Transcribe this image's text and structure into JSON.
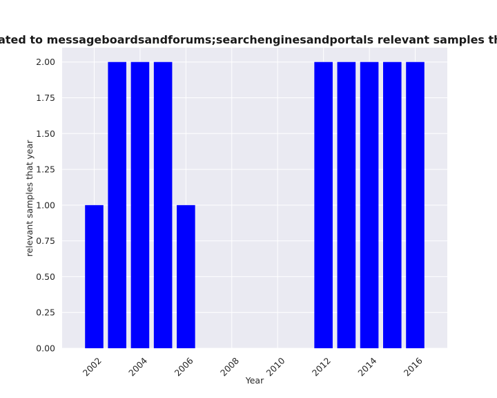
{
  "chart_data": {
    "type": "bar",
    "title": "Research Papers related to messageboardsandforums;searchenginesandportals relevant samples that year in percentage",
    "xlabel": "Year",
    "ylabel": "relevant samples that year",
    "x": [
      2002,
      2003,
      2004,
      2005,
      2006,
      2012,
      2013,
      2014,
      2015,
      2016
    ],
    "values": [
      1,
      2,
      2,
      2,
      1,
      2,
      2,
      2,
      2,
      2
    ],
    "xlim": [
      2000.6,
      2017.4
    ],
    "ylim": [
      0,
      2.1
    ],
    "xticks": [
      "2002",
      "2004",
      "2006",
      "2008",
      "2010",
      "2012",
      "2014",
      "2016"
    ],
    "yticks": [
      "0.00",
      "0.25",
      "0.50",
      "0.75",
      "1.00",
      "1.25",
      "1.50",
      "1.75",
      "2.00"
    ],
    "grid": true,
    "bar_color": "#0000ff",
    "background_color": "#eaeaf2"
  }
}
